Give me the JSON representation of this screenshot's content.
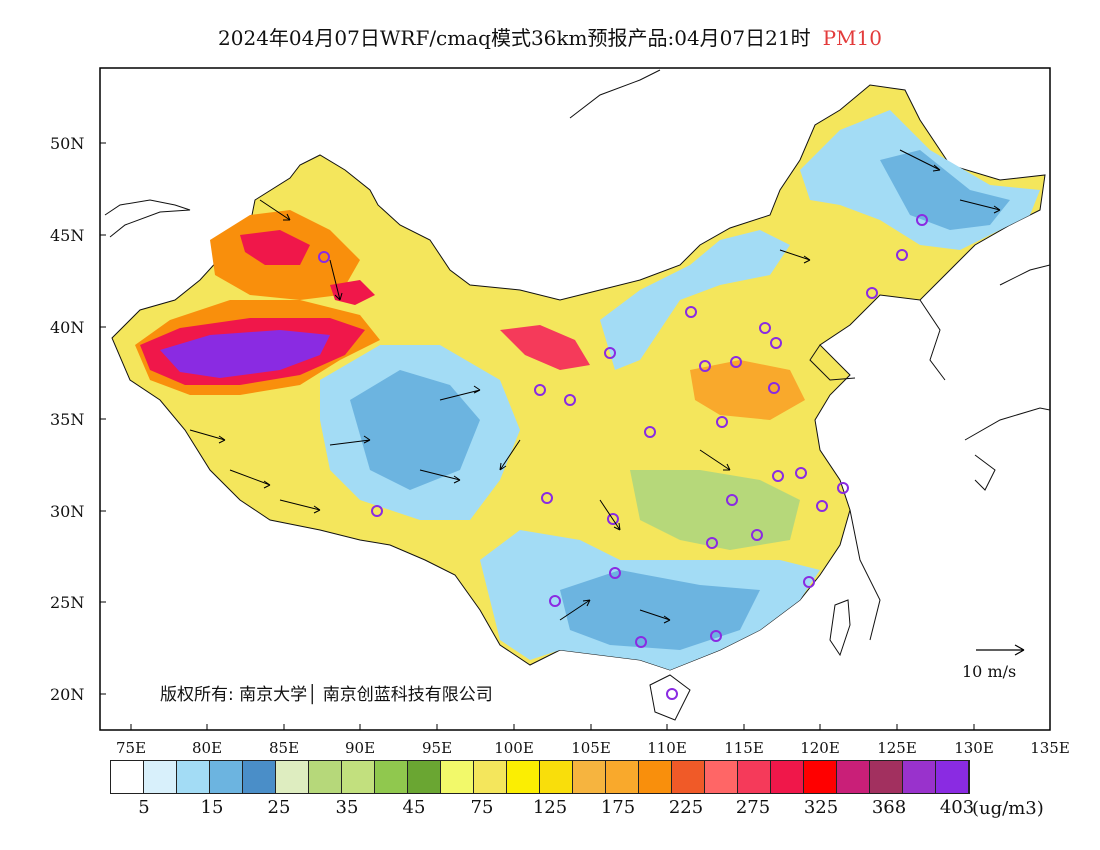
{
  "title": {
    "main": "2024年04月07日WRF/cmaq模式36km预报产品:04月07日21时",
    "pollutant": "PM10",
    "pollutant_color": "#e33b3b"
  },
  "axes": {
    "lat_labels": [
      "50N",
      "45N",
      "40N",
      "35N",
      "30N",
      "25N",
      "20N"
    ],
    "lon_labels": [
      "75E",
      "80E",
      "85E",
      "90E",
      "95E",
      "100E",
      "105E",
      "110E",
      "115E",
      "120E",
      "125E",
      "130E",
      "135E"
    ]
  },
  "copyright": "版权所有: 南京大学│ 南京创蓝科技有限公司",
  "wind_reference": "10 m/s",
  "colorbar": {
    "colors": [
      "#ffffff",
      "#d8f0fb",
      "#a3dcf5",
      "#6cb4e0",
      "#4a8ec8",
      "#deedc0",
      "#b6d87a",
      "#c2e07e",
      "#90c84e",
      "#6aa632",
      "#f2f96a",
      "#f4e65c",
      "#fbee02",
      "#f9de0b",
      "#f6b43f",
      "#f9a92c",
      "#f98f0c",
      "#f05a28",
      "#ff6666",
      "#f53a5a",
      "#f0174a",
      "#ff0000",
      "#c91f78",
      "#a2305f",
      "#9932cc",
      "#8a2be2"
    ],
    "labels": [
      "5",
      "15",
      "25",
      "35",
      "45",
      "75",
      "125",
      "175",
      "225",
      "275",
      "325",
      "368",
      "403"
    ],
    "units": "(ug/m3)"
  },
  "map_features": {
    "land_color": "#ffffff",
    "boundary_color": "#000000",
    "station_marker_color": "#8a2be2"
  }
}
